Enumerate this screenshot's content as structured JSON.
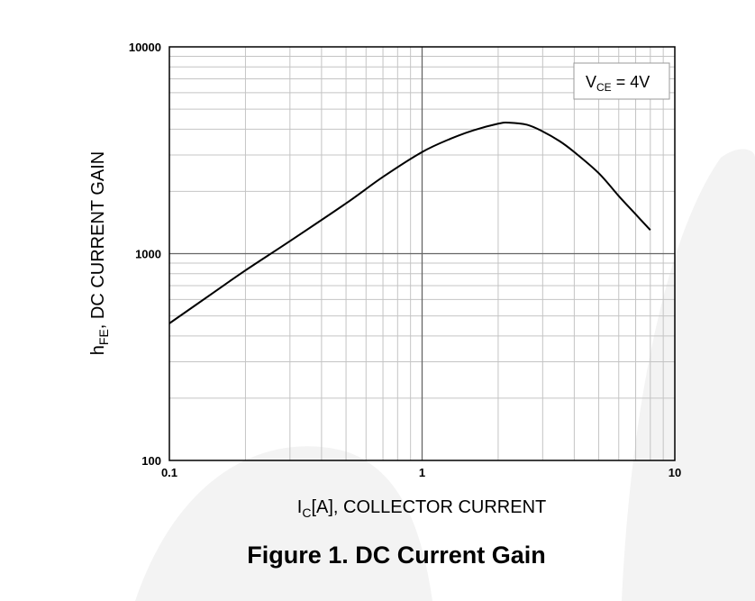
{
  "caption": "Figure 1. DC Current Gain",
  "chart_data": {
    "type": "line",
    "title": "",
    "xlabel": {
      "main": "I",
      "sub": "C",
      "rest": "[A], COLLECTOR CURRENT"
    },
    "ylabel": {
      "main": "h",
      "sub": "FE",
      "rest": ", DC CURRENT GAIN"
    },
    "x_scale": "log",
    "y_scale": "log",
    "xlim": [
      0.1,
      10
    ],
    "ylim": [
      100,
      10000
    ],
    "x_ticks": [
      "0.1",
      "1",
      "10"
    ],
    "y_ticks": [
      "100",
      "1000",
      "10000"
    ],
    "grid": true,
    "annotation": {
      "main": "V",
      "sub": "CE",
      "rest": " = 4V"
    },
    "series": [
      {
        "line_color": "#000000",
        "x": [
          0.1,
          0.15,
          0.2,
          0.3,
          0.5,
          0.7,
          1.0,
          1.3,
          1.6,
          2.0,
          2.2,
          2.6,
          3.0,
          3.5,
          4.0,
          5.0,
          6.0,
          7.0,
          8.0
        ],
        "y": [
          460,
          650,
          830,
          1150,
          1750,
          2350,
          3100,
          3600,
          3950,
          4250,
          4300,
          4200,
          3900,
          3500,
          3100,
          2450,
          1900,
          1550,
          1300
        ]
      }
    ]
  }
}
